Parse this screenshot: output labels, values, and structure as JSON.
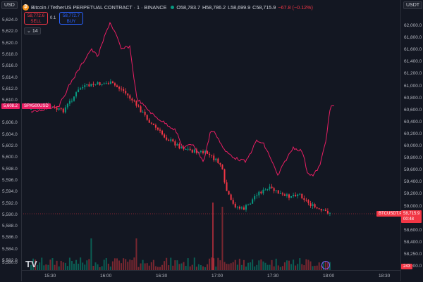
{
  "header": {
    "symbol": "Bitcoin / TetherUS PERPETUAL CONTRACT · 1 · BINANCE",
    "logo_char": "₿",
    "o": "O58,783.7",
    "h": "H58,786.2",
    "l": "L58,699.9",
    "c": "C58,715.9",
    "change": "−67.8 (−0.12%)"
  },
  "trade": {
    "sell_price": "58,772.6",
    "sell_label": "SELL",
    "spread": "0.1",
    "buy_price": "58,772.7",
    "buy_label": "BUY",
    "collapse_count": "14"
  },
  "left_axis": {
    "currency": "USD",
    "ticks": [
      "5,624.0",
      "5,622.0",
      "5,620.0",
      "5,618.0",
      "5,616.0",
      "5,614.0",
      "5,612.0",
      "5,610.0",
      "5,606.0",
      "5,604.0",
      "5,602.0",
      "5,600.0",
      "5,598.0",
      "5,596.0",
      "5,594.0",
      "5,592.0",
      "5,590.0",
      "5,588.0",
      "5,586.0",
      "5,584.0",
      "5,582.0",
      "5,580.0"
    ],
    "price_badge": "5,608.2",
    "series_badge": "SPX500USD"
  },
  "right_axis": {
    "currency": "USDT",
    "ticks": [
      "62,000.0",
      "61,800.0",
      "61,600.0",
      "61,400.0",
      "61,200.0",
      "61,000.0",
      "60,800.0",
      "60,600.0",
      "60,400.0",
      "60,200.0",
      "60,000.0",
      "59,800.0",
      "59,600.0",
      "59,400.0",
      "59,200.0",
      "59,000.0",
      "58,800.0",
      "58,600.0",
      "58,400.0",
      "58,250.0",
      "58,000.0"
    ],
    "last_price": "58,715.9",
    "countdown": "00:48",
    "series_badge": "BTCUSDT.P",
    "volume_badge": "243"
  },
  "bottom_axis": {
    "ticks": [
      "15:30",
      "16:00",
      "16:30",
      "17:00",
      "17:30",
      "18:00",
      "18:30"
    ]
  },
  "chart_data": {
    "type": "line",
    "series": [
      {
        "name": "SPX500USD",
        "x_range": [
          "15:15",
          "17:58"
        ],
        "y_range_usd": [
          5586,
          5624
        ]
      },
      {
        "name": "BTCUSDT.P",
        "x_range": [
          "15:15",
          "17:58"
        ],
        "y_range_usdt": [
          58700,
          61900
        ]
      }
    ],
    "colors": {
      "spx_line": "#e91e63",
      "up": "#089981",
      "down": "#f23645",
      "bg": "#131722"
    }
  },
  "watermark": "TV"
}
